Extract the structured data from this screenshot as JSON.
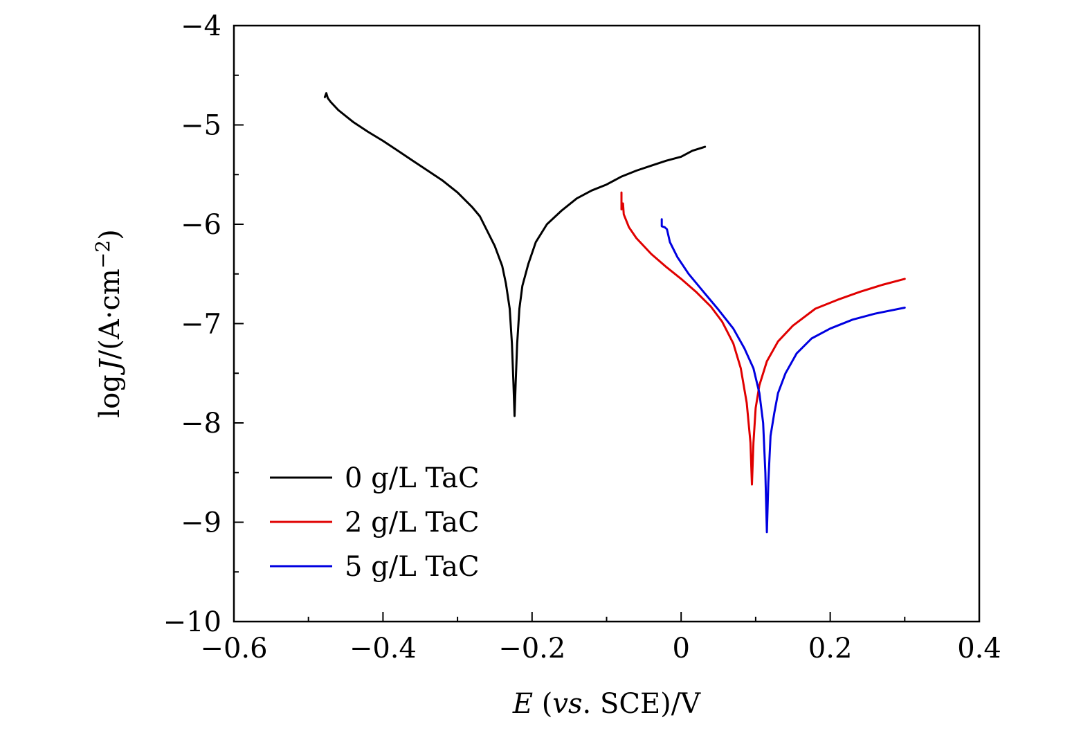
{
  "chart_data": {
    "type": "line",
    "title": "",
    "xlabel": "E (vs. SCE)/V",
    "xlabel_parts": {
      "var": "E",
      "open": " (",
      "vs": "vs",
      "rest": ". SCE)/V"
    },
    "ylabel": "log J/(A·cm−2)",
    "ylabel_parts": {
      "prefix": "log",
      "var": "J",
      "rest": "/(A·cm",
      "sup": "−2",
      "close": ")"
    },
    "xlim": [
      -0.6,
      0.4
    ],
    "ylim": [
      -10,
      -4
    ],
    "x_ticks": [
      -0.6,
      -0.4,
      -0.2,
      0,
      0.2,
      0.4
    ],
    "x_tick_labels": [
      "−0.6",
      "−0.4",
      "−0.2",
      "0",
      "0.2",
      "0.4"
    ],
    "y_ticks": [
      -10,
      -9,
      -8,
      -7,
      -6,
      -5,
      -4
    ],
    "y_tick_labels": [
      "−10",
      "−9",
      "−8",
      "−7",
      "−6",
      "−5",
      "−4"
    ],
    "legend_position": "bottom-left",
    "series": [
      {
        "name": "0 g/L TaC",
        "color": "#000000",
        "points": [
          [
            -0.478,
            -4.72
          ],
          [
            -0.476,
            -4.68
          ],
          [
            -0.474,
            -4.73
          ],
          [
            -0.47,
            -4.77
          ],
          [
            -0.46,
            -4.85
          ],
          [
            -0.44,
            -4.97
          ],
          [
            -0.42,
            -5.07
          ],
          [
            -0.4,
            -5.16
          ],
          [
            -0.38,
            -5.26
          ],
          [
            -0.36,
            -5.36
          ],
          [
            -0.34,
            -5.46
          ],
          [
            -0.32,
            -5.56
          ],
          [
            -0.3,
            -5.68
          ],
          [
            -0.28,
            -5.83
          ],
          [
            -0.27,
            -5.92
          ],
          [
            -0.26,
            -6.07
          ],
          [
            -0.25,
            -6.22
          ],
          [
            -0.24,
            -6.42
          ],
          [
            -0.235,
            -6.6
          ],
          [
            -0.23,
            -6.85
          ],
          [
            -0.227,
            -7.2
          ],
          [
            -0.225,
            -7.6
          ],
          [
            -0.2235,
            -7.93
          ],
          [
            -0.222,
            -7.6
          ],
          [
            -0.22,
            -7.2
          ],
          [
            -0.217,
            -6.85
          ],
          [
            -0.213,
            -6.62
          ],
          [
            -0.205,
            -6.4
          ],
          [
            -0.195,
            -6.18
          ],
          [
            -0.18,
            -6.0
          ],
          [
            -0.16,
            -5.86
          ],
          [
            -0.14,
            -5.74
          ],
          [
            -0.12,
            -5.66
          ],
          [
            -0.1,
            -5.6
          ],
          [
            -0.08,
            -5.52
          ],
          [
            -0.06,
            -5.46
          ],
          [
            -0.04,
            -5.41
          ],
          [
            -0.02,
            -5.36
          ],
          [
            0.0,
            -5.32
          ],
          [
            0.015,
            -5.26
          ],
          [
            0.032,
            -5.22
          ]
        ]
      },
      {
        "name": "2 g/L TaC",
        "color": "#e00000",
        "points": [
          [
            -0.08,
            -5.68
          ],
          [
            -0.08,
            -5.85
          ],
          [
            -0.078,
            -5.79
          ],
          [
            -0.077,
            -5.9
          ],
          [
            -0.07,
            -6.03
          ],
          [
            -0.06,
            -6.14
          ],
          [
            -0.04,
            -6.3
          ],
          [
            -0.02,
            -6.43
          ],
          [
            0.0,
            -6.55
          ],
          [
            0.02,
            -6.68
          ],
          [
            0.04,
            -6.83
          ],
          [
            0.055,
            -6.98
          ],
          [
            0.07,
            -7.2
          ],
          [
            0.08,
            -7.45
          ],
          [
            0.088,
            -7.8
          ],
          [
            0.093,
            -8.2
          ],
          [
            0.095,
            -8.62
          ],
          [
            0.097,
            -8.2
          ],
          [
            0.1,
            -7.85
          ],
          [
            0.105,
            -7.62
          ],
          [
            0.115,
            -7.38
          ],
          [
            0.13,
            -7.18
          ],
          [
            0.15,
            -7.02
          ],
          [
            0.18,
            -6.85
          ],
          [
            0.21,
            -6.76
          ],
          [
            0.24,
            -6.68
          ],
          [
            0.27,
            -6.61
          ],
          [
            0.3,
            -6.55
          ]
        ]
      },
      {
        "name": "5 g/L TaC",
        "color": "#0000e0",
        "points": [
          [
            -0.026,
            -5.95
          ],
          [
            -0.026,
            -6.02
          ],
          [
            -0.022,
            -6.03
          ],
          [
            -0.019,
            -6.05
          ],
          [
            -0.015,
            -6.18
          ],
          [
            -0.005,
            -6.33
          ],
          [
            0.01,
            -6.5
          ],
          [
            0.03,
            -6.68
          ],
          [
            0.05,
            -6.86
          ],
          [
            0.07,
            -7.05
          ],
          [
            0.085,
            -7.25
          ],
          [
            0.097,
            -7.45
          ],
          [
            0.105,
            -7.7
          ],
          [
            0.11,
            -8.0
          ],
          [
            0.113,
            -8.5
          ],
          [
            0.115,
            -9.1
          ],
          [
            0.117,
            -8.6
          ],
          [
            0.12,
            -8.13
          ],
          [
            0.125,
            -7.9
          ],
          [
            0.13,
            -7.7
          ],
          [
            0.14,
            -7.5
          ],
          [
            0.155,
            -7.3
          ],
          [
            0.175,
            -7.15
          ],
          [
            0.2,
            -7.05
          ],
          [
            0.23,
            -6.96
          ],
          [
            0.26,
            -6.9
          ],
          [
            0.3,
            -6.84
          ]
        ]
      }
    ]
  }
}
